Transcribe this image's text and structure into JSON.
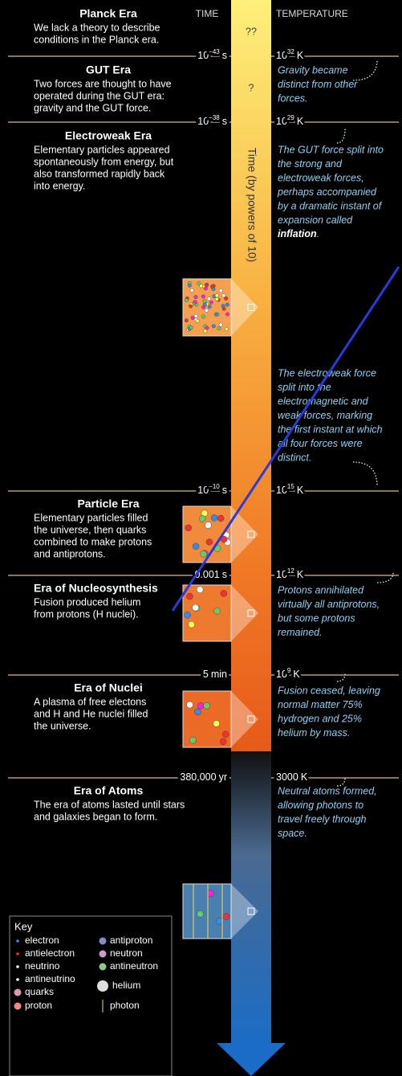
{
  "headers": {
    "time": "TIME",
    "temperature": "TEMPERATURE",
    "unknown_1": "??",
    "unknown_2": "?",
    "axis": "Time (by powers of 10)"
  },
  "eras": [
    {
      "title": "Planck Era",
      "description": [
        "We lack a theory to describe",
        "conditions in the Planck era."
      ]
    },
    {
      "title": "GUT Era",
      "description": [
        "Two forces are thought to have",
        "operated during the GUT era:",
        "gravity and the GUT force."
      ]
    },
    {
      "title": "Electroweak Era",
      "description": [
        "Elementary particles appeared",
        "spontaneously from energy, but",
        "also transformed rapidly back",
        "into energy."
      ]
    },
    {
      "title": "Particle Era",
      "description": [
        "Elementary particles filled",
        "the universe, then quarks",
        "combined to make protons",
        "and antiprotons."
      ]
    },
    {
      "title": "Era of Nucleosynthesis",
      "description": [
        "Fusion produced helium",
        "from protons (H nuclei)."
      ]
    },
    {
      "title": "Era of Nuclei",
      "description": [
        "A plasma of free electons",
        "and H and He nuclei filled",
        "the universe."
      ]
    },
    {
      "title": "Era of Atoms",
      "description": [
        "The era of atoms lasted until stars",
        "and galaxies began to form."
      ]
    }
  ],
  "times": [
    {
      "base": "10",
      "exponent": "−43",
      "unit": "s"
    },
    {
      "base": "10",
      "exponent": "−38",
      "unit": "s"
    },
    {
      "base": "10",
      "exponent": "−10",
      "unit": "s"
    },
    {
      "base": "0.001",
      "unit": "s"
    },
    {
      "base": "5",
      "unit": "min"
    },
    {
      "base": "380,000",
      "unit": "yr"
    }
  ],
  "temperatures": [
    {
      "base": "10",
      "exponent": "32",
      "unit": "K"
    },
    {
      "base": "10",
      "exponent": "29",
      "unit": "K"
    },
    {
      "base": "10",
      "exponent": "15",
      "unit": "K"
    },
    {
      "base": "10",
      "exponent": "12",
      "unit": "K"
    },
    {
      "base": "10",
      "exponent": "9",
      "unit": "K"
    },
    {
      "base": "3000",
      "unit": "K"
    }
  ],
  "notes": [
    {
      "lines": [
        "Gravity became",
        "distinct from other",
        "forces."
      ]
    },
    {
      "lines": [
        "The GUT force split into",
        "the strong and",
        "electroweak forces,",
        "perhaps accompanied",
        "by a dramatic instant of",
        "expansion called"
      ],
      "emphasis": "inflation",
      "end": "."
    },
    {
      "lines": [
        "The electroweak force",
        "split into the",
        "electromagnetic and",
        "weak forces, marking",
        "the first instant at which",
        "all four forces were",
        "distinct."
      ]
    },
    {
      "lines": [
        "Protons annihilated",
        "virtually all antiprotons,",
        "but some protons",
        "remained."
      ]
    },
    {
      "lines": [
        "Fusion ceased, leaving",
        "normal matter 75%",
        "hydrogen and 25%",
        "helium by mass."
      ]
    },
    {
      "lines": [
        "Neutral atoms formed,",
        "allowing photons to",
        "travel freely through",
        "space."
      ]
    }
  ],
  "key": {
    "title": "Key",
    "items": [
      "electron",
      "antielectron",
      "neutrino",
      "antineutrino",
      "quarks",
      "proton",
      "antiproton",
      "neutron",
      "antineutron",
      "helium",
      "photon"
    ]
  }
}
